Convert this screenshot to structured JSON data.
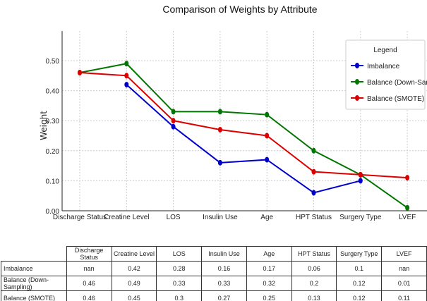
{
  "chart_data": {
    "type": "line",
    "title": "Comparison of Weights by Attribute",
    "xlabel": "",
    "ylabel": "Weight",
    "ylim": [
      0,
      0.59
    ],
    "yticks": [
      "0.00",
      "0.10",
      "0.20",
      "0.30",
      "0.40",
      "0.50"
    ],
    "grid": true,
    "legend": {
      "title": "Legend",
      "placement": "top-right"
    },
    "categories": [
      "Discharge Status",
      "Creatine Level",
      "LOS",
      "Insulin Use",
      "Age",
      "HPT Status",
      "Surgery Type",
      "LVEF"
    ],
    "series": [
      {
        "name": "Imbalance",
        "color": "#0000cc",
        "values": [
          null,
          0.42,
          0.28,
          0.16,
          0.17,
          0.06,
          0.1,
          null
        ]
      },
      {
        "name": "Balance (Down-Sampling)",
        "color": "#007700",
        "values": [
          0.46,
          0.49,
          0.33,
          0.33,
          0.32,
          0.2,
          0.12,
          0.01
        ]
      },
      {
        "name": "Balance (SMOTE)",
        "color": "#dd0000",
        "values": [
          0.46,
          0.45,
          0.3,
          0.27,
          0.25,
          0.13,
          0.12,
          0.11
        ]
      }
    ]
  },
  "table": {
    "rows": [
      {
        "label": "Imbalance",
        "cells": [
          "nan",
          "0.42",
          "0.28",
          "0.16",
          "0.17",
          "0.06",
          "0.1",
          "nan"
        ]
      },
      {
        "label": "Balance (Down-Sampling)",
        "cells": [
          "0.46",
          "0.49",
          "0.33",
          "0.33",
          "0.32",
          "0.2",
          "0.12",
          "0.01"
        ]
      },
      {
        "label": "Balance (SMOTE)",
        "cells": [
          "0.46",
          "0.45",
          "0.3",
          "0.27",
          "0.25",
          "0.13",
          "0.12",
          "0.11"
        ]
      }
    ]
  }
}
